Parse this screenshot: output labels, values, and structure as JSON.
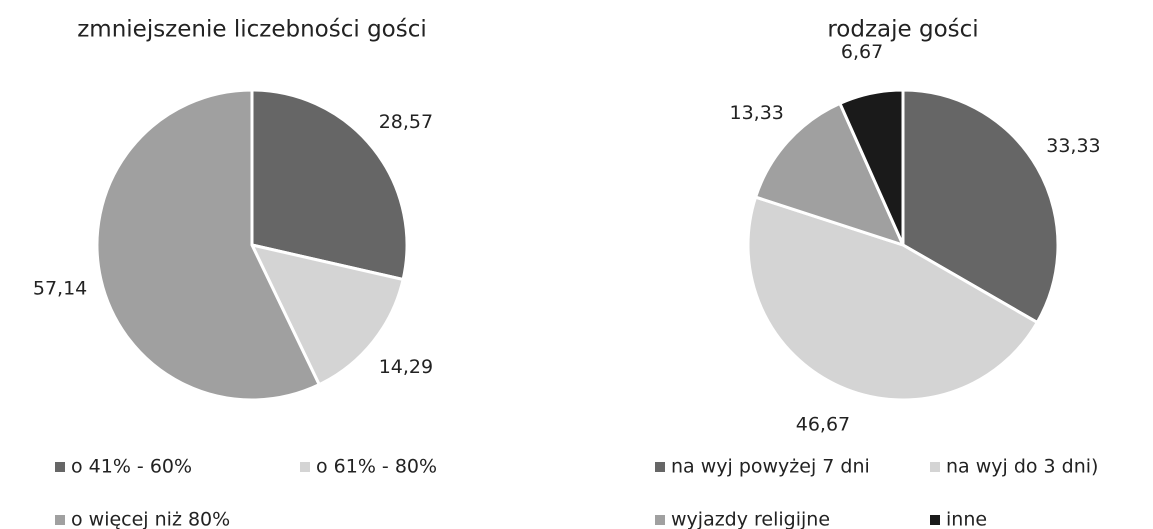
{
  "chart_data": [
    {
      "type": "pie",
      "title": "zmniejszenie liczebności gości",
      "categories": [
        "o 41% - 60%",
        "o 61% - 80%",
        "o więcej niż 80%"
      ],
      "values": [
        28.57,
        14.29,
        57.14
      ],
      "value_labels": [
        "28,57",
        "14,29",
        "57,14"
      ],
      "colors": [
        "#666666",
        "#d4d4d4",
        "#a0a0a0"
      ]
    },
    {
      "type": "pie",
      "title": "rodzaje gości",
      "categories": [
        "na wyj powyżej 7 dni",
        "na wyj do 3 dni)",
        "wyjazdy religijne",
        "inne"
      ],
      "values": [
        33.33,
        46.67,
        13.33,
        6.67
      ],
      "value_labels": [
        "33,33",
        "46,67",
        "13,33",
        "6,67"
      ],
      "colors": [
        "#666666",
        "#d4d4d4",
        "#a0a0a0",
        "#1a1a1a"
      ]
    }
  ]
}
